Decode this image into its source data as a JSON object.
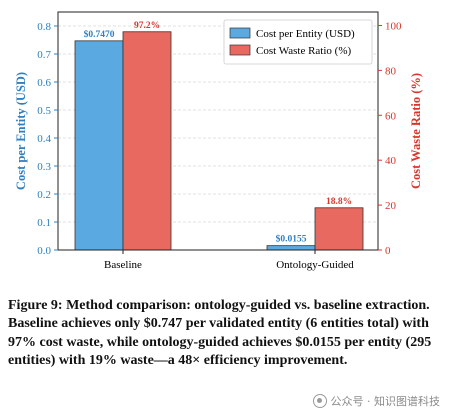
{
  "chart_data": {
    "type": "bar",
    "categories": [
      "Baseline",
      "Ontology-Guided"
    ],
    "series": [
      {
        "name": "Cost per Entity (USD)",
        "values": [
          0.747,
          0.0155
        ],
        "labels": [
          "$0.7470",
          "$0.0155"
        ],
        "axis": "left",
        "color": "#5aa9e0",
        "label_color": "#2f7fc1"
      },
      {
        "name": "Cost Waste Ratio (%)",
        "values": [
          97.2,
          18.8
        ],
        "labels": [
          "97.2%",
          "18.8%"
        ],
        "axis": "right",
        "color": "#e8695f",
        "label_color": "#d9352a"
      }
    ],
    "ylabel": "Cost per Entity (USD)",
    "ylabel_right": "Cost Waste Ratio (%)",
    "ylim": [
      0,
      0.85
    ],
    "ylim_right": [
      0,
      106
    ],
    "yticks": [
      "0.0",
      "0.1",
      "0.2",
      "0.3",
      "0.4",
      "0.5",
      "0.6",
      "0.7",
      "0.8"
    ],
    "yticks_right": [
      "0",
      "20",
      "40",
      "60",
      "80",
      "100"
    ],
    "legend": "top-right",
    "grid": true
  },
  "caption": "Figure 9: Method comparison: ontology-guided vs. baseline extraction. Baseline achieves only $0.747 per validated entity (6 entities total) with 97% cost waste, while ontology-guided achieves $0.0155 per entity (295 entities) with 19% waste—a 48× efficiency improvement.",
  "watermark": "公众号 · 知识图谱科技"
}
